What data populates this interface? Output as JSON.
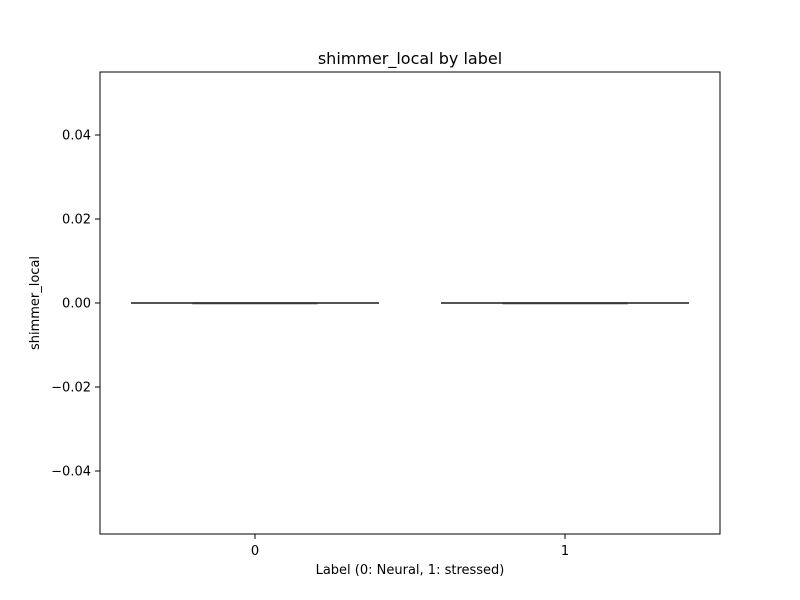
{
  "chart_data": {
    "type": "box",
    "title": "shimmer_local by label",
    "xlabel": "Label (0: Neural, 1: stressed)",
    "ylabel": "shimmer_local",
    "categories": [
      "0",
      "1"
    ],
    "ylim": [
      -0.055,
      0.055
    ],
    "yticks": [
      -0.04,
      -0.02,
      0.0,
      0.02,
      0.04
    ],
    "ytick_labels": [
      "−0.04",
      "−0.02",
      "0.00",
      "0.02",
      "0.04"
    ],
    "grid": false,
    "boxes": [
      {
        "category": "0",
        "min": 0.0,
        "q1": 0.0,
        "median": 0.0,
        "q3": 0.0,
        "max": 0.0
      },
      {
        "category": "1",
        "min": 0.0,
        "q1": 0.0,
        "median": 0.0,
        "q3": 0.0,
        "max": 0.0
      }
    ],
    "colors": {
      "box_stroke": "#3d3d3d",
      "axes": "#000000"
    }
  }
}
